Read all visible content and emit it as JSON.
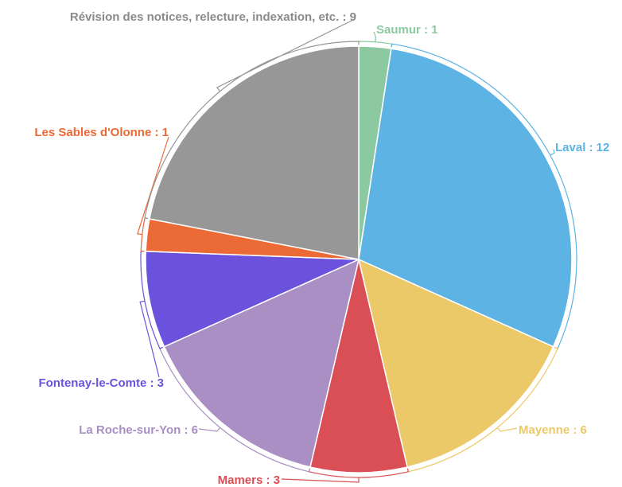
{
  "chart_data": {
    "type": "pie",
    "values": [
      1,
      12,
      6,
      3,
      6,
      3,
      1,
      9
    ],
    "value_labels": [
      "Saumur : 1",
      "Laval : 12",
      "Mayenne : 6",
      "Mamers : 3",
      "La Roche-sur-Yon : 6",
      "Fontenay-le-Comte : 3",
      "Les Sables d'Olonne : 1",
      "Révision des notices, relecture, indexation, etc. : 9"
    ],
    "colors": [
      "#8dc9a0",
      "#5db3e3",
      "#ecc968",
      "#d94f55",
      "#a98fc4",
      "#6b52dc",
      "#ec6a35",
      "#979797"
    ]
  }
}
